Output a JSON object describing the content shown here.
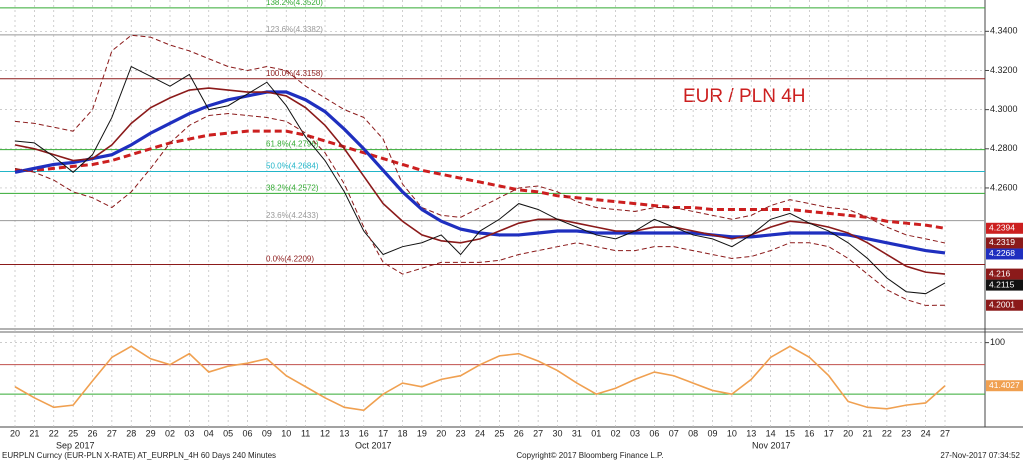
{
  "chart_data": [
    {
      "type": "line",
      "title": "EUR / PLN 4H",
      "categories": [
        "20",
        "21",
        "22",
        "25",
        "26",
        "27",
        "28",
        "29",
        "02",
        "03",
        "04",
        "05",
        "06",
        "09",
        "10",
        "11",
        "12",
        "13",
        "16",
        "17",
        "18",
        "19",
        "20",
        "23",
        "24",
        "25",
        "26",
        "27",
        "30",
        "31",
        "01",
        "02",
        "03",
        "06",
        "07",
        "08",
        "09",
        "10",
        "13",
        "14",
        "15",
        "16",
        "17",
        "20",
        "21",
        "22",
        "23",
        "24",
        "27"
      ],
      "months": [
        "Sep 2017",
        "Oct 2017",
        "Nov 2017"
      ],
      "ylim": [
        4.19,
        4.356
      ],
      "yticks": [
        {
          "value": 4.34,
          "label": "4.3400"
        },
        {
          "value": 4.32,
          "label": "4.3200"
        },
        {
          "value": 4.3,
          "label": "4.3000"
        },
        {
          "value": 4.28,
          "label": "4.2800"
        },
        {
          "value": 4.26,
          "label": "4.2600"
        }
      ],
      "grid": true,
      "levels": [
        {
          "label": "138.2%(4.3520)",
          "value": 4.352,
          "color": "#33aa33"
        },
        {
          "label": "123.6%(4.3382)",
          "value": 4.3382,
          "color": "#999999"
        },
        {
          "label": "100.0%(4.3158)",
          "value": 4.3158,
          "color": "#8b1a1a"
        },
        {
          "label": "61.8%(4.2796)",
          "value": 4.2796,
          "color": "#33aa33"
        },
        {
          "label": "50.0%(4.2684)",
          "value": 4.2684,
          "color": "#22b5c8"
        },
        {
          "label": "38.2%(4.2572)",
          "value": 4.2572,
          "color": "#33aa33"
        },
        {
          "label": "23.6%(4.2433)",
          "value": 4.2433,
          "color": "#999999"
        },
        {
          "label": "0.0%(4.2209)",
          "value": 4.2209,
          "color": "#8b1a1a"
        }
      ],
      "series": [
        {
          "color": "#cc1f1f",
          "style": "dashed-thick",
          "values": [
            4.269,
            4.269,
            4.27,
            4.271,
            4.272,
            4.274,
            4.277,
            4.28,
            4.283,
            4.285,
            4.287,
            4.288,
            4.289,
            4.289,
            4.289,
            4.287,
            4.284,
            4.281,
            4.278,
            4.275,
            4.272,
            4.269,
            4.267,
            4.265,
            4.263,
            4.261,
            4.259,
            4.258,
            4.256,
            4.255,
            4.254,
            4.253,
            4.252,
            4.251,
            4.25,
            4.25,
            4.249,
            4.249,
            4.249,
            4.249,
            4.249,
            4.248,
            4.247,
            4.246,
            4.245,
            4.243,
            4.242,
            4.241,
            4.2394
          ]
        },
        {
          "color": "#8b1a1a",
          "style": "dashed",
          "values": [
            4.294,
            4.293,
            4.291,
            4.289,
            4.3,
            4.33,
            4.338,
            4.337,
            4.333,
            4.33,
            4.326,
            4.322,
            4.32,
            4.322,
            4.32,
            4.312,
            4.306,
            4.3,
            4.296,
            4.285,
            4.262,
            4.25,
            4.246,
            4.245,
            4.25,
            4.255,
            4.26,
            4.261,
            4.258,
            4.253,
            4.25,
            4.249,
            4.248,
            4.25,
            4.25,
            4.248,
            4.246,
            4.244,
            4.246,
            4.251,
            4.254,
            4.252,
            4.25,
            4.249,
            4.245,
            4.24,
            4.236,
            4.234,
            4.2319
          ]
        },
        {
          "color": "#1f2fbf",
          "style": "thick",
          "values": [
            4.268,
            4.27,
            4.272,
            4.273,
            4.275,
            4.277,
            4.282,
            4.288,
            4.293,
            4.298,
            4.302,
            4.305,
            4.307,
            4.309,
            4.309,
            4.305,
            4.299,
            4.29,
            4.28,
            4.269,
            4.258,
            4.249,
            4.243,
            4.239,
            4.237,
            4.236,
            4.236,
            4.237,
            4.238,
            4.238,
            4.237,
            4.237,
            4.237,
            4.237,
            4.237,
            4.237,
            4.236,
            4.235,
            4.235,
            4.236,
            4.237,
            4.237,
            4.237,
            4.236,
            4.234,
            4.232,
            4.23,
            4.228,
            4.2268
          ]
        },
        {
          "color": "#8b1a1a",
          "style": "solid",
          "values": [
            4.282,
            4.28,
            4.277,
            4.274,
            4.275,
            4.282,
            4.293,
            4.301,
            4.306,
            4.31,
            4.311,
            4.31,
            4.309,
            4.309,
            4.307,
            4.301,
            4.292,
            4.28,
            4.266,
            4.252,
            4.243,
            4.236,
            4.233,
            4.232,
            4.234,
            4.238,
            4.242,
            4.244,
            4.244,
            4.242,
            4.24,
            4.238,
            4.238,
            4.24,
            4.24,
            4.238,
            4.236,
            4.234,
            4.236,
            4.24,
            4.243,
            4.242,
            4.24,
            4.237,
            4.232,
            4.226,
            4.22,
            4.217,
            4.216
          ]
        },
        {
          "color": "#111111",
          "style": "thin",
          "values": [
            4.284,
            4.283,
            4.276,
            4.268,
            4.277,
            4.296,
            4.322,
            4.317,
            4.312,
            4.318,
            4.3,
            4.302,
            4.308,
            4.314,
            4.302,
            4.286,
            4.274,
            4.258,
            4.238,
            4.226,
            4.23,
            4.232,
            4.236,
            4.226,
            4.238,
            4.244,
            4.252,
            4.249,
            4.244,
            4.24,
            4.236,
            4.234,
            4.238,
            4.244,
            4.24,
            4.236,
            4.234,
            4.23,
            4.236,
            4.244,
            4.247,
            4.242,
            4.238,
            4.232,
            4.224,
            4.214,
            4.207,
            4.206,
            4.2115
          ]
        },
        {
          "color": "#8b1a1a",
          "style": "dashed",
          "values": [
            4.27,
            4.268,
            4.264,
            4.258,
            4.255,
            4.25,
            4.258,
            4.27,
            4.283,
            4.292,
            4.297,
            4.298,
            4.297,
            4.296,
            4.294,
            4.288,
            4.278,
            4.262,
            4.24,
            4.222,
            4.216,
            4.219,
            4.222,
            4.222,
            4.222,
            4.223,
            4.226,
            4.228,
            4.23,
            4.232,
            4.23,
            4.228,
            4.228,
            4.23,
            4.23,
            4.228,
            4.226,
            4.224,
            4.225,
            4.228,
            4.232,
            4.232,
            4.23,
            4.224,
            4.216,
            4.208,
            4.203,
            4.2,
            4.2001
          ]
        }
      ]
    },
    {
      "type": "line",
      "ylim": [
        -12,
        109
      ],
      "yticks": [
        100
      ],
      "levels": [
        {
          "value": 70,
          "color": "#c0504d"
        },
        {
          "value": 30,
          "color": "#33aa33"
        }
      ],
      "series": [
        {
          "color": "#f0a050",
          "style": "solid",
          "values": [
            40,
            25,
            12,
            15,
            48,
            80,
            95,
            78,
            70,
            85,
            60,
            68,
            72,
            78,
            55,
            40,
            25,
            12,
            8,
            30,
            45,
            40,
            50,
            55,
            70,
            82,
            85,
            75,
            62,
            45,
            30,
            38,
            50,
            60,
            55,
            45,
            35,
            30,
            50,
            80,
            95,
            80,
            55,
            20,
            12,
            10,
            15,
            18,
            41.4027
          ]
        }
      ]
    }
  ],
  "footer": {
    "left": "EURPLN Curncy (EUR-PLN X-RATE) AT_EURPLN_4H 60 Days 240 Minutes",
    "center": "Copyright© 2017 Bloomberg Finance L.P.",
    "right": "27-Nov-2017 07:34:52"
  }
}
